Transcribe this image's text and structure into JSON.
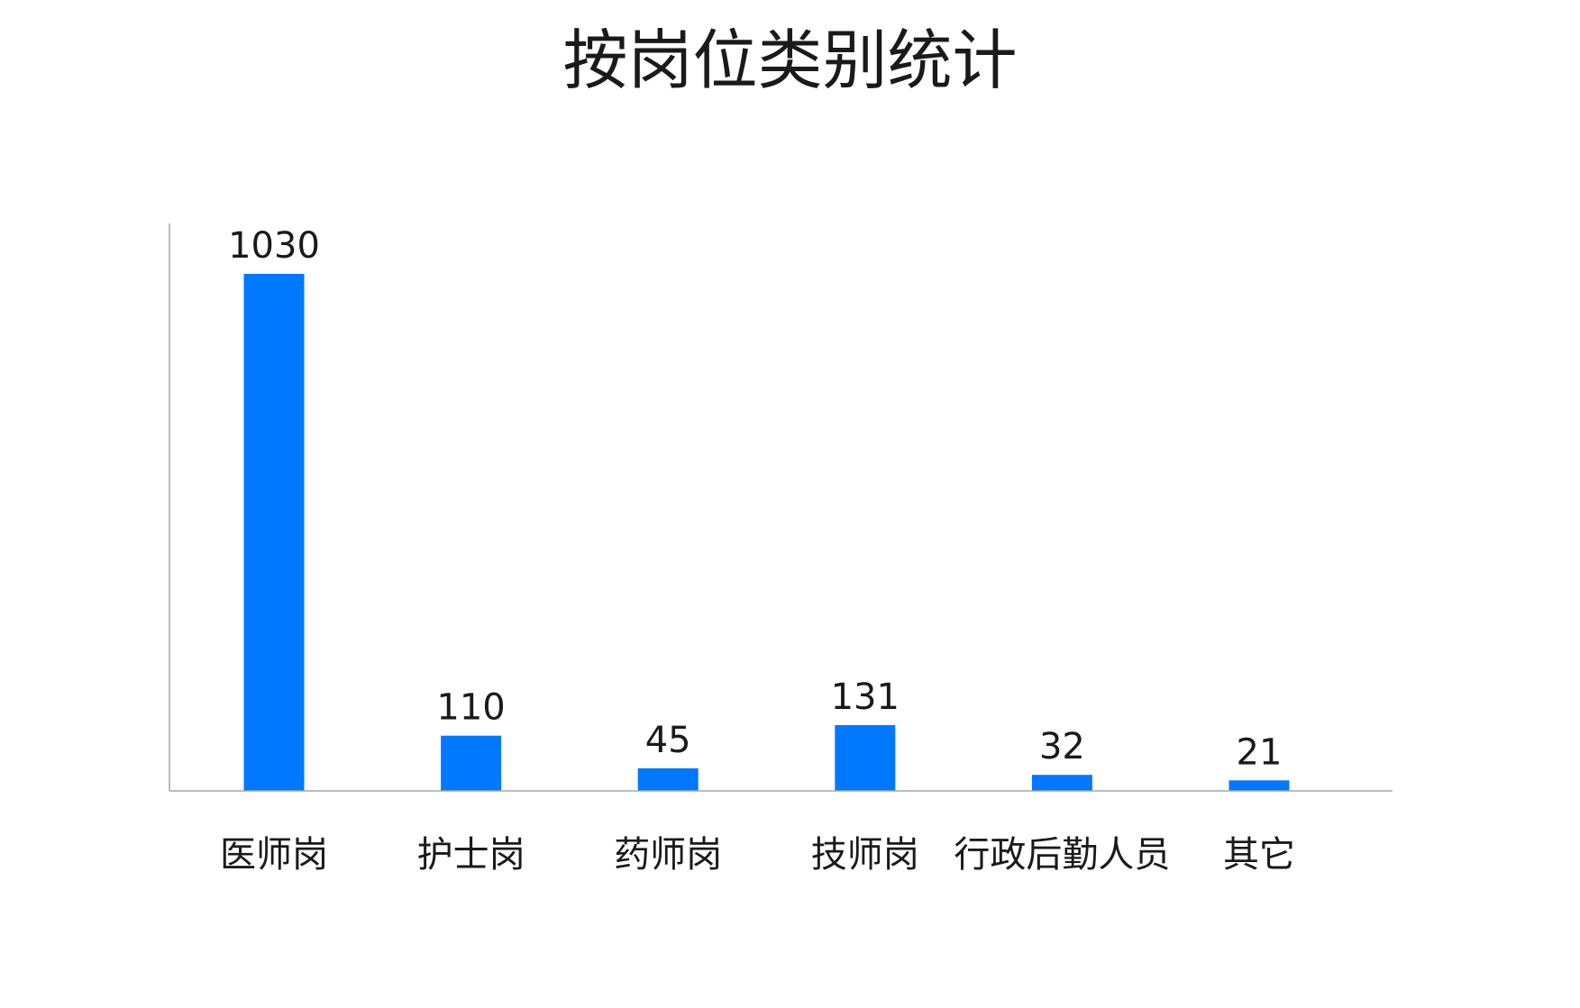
{
  "chart_data": {
    "type": "bar",
    "title": "按岗位类别统计",
    "categories": [
      "医师岗",
      "护士岗",
      "药师岗",
      "技师岗",
      "行政后勤人员",
      "其它"
    ],
    "values": [
      1030,
      110,
      45,
      131,
      32,
      21
    ],
    "xlabel": "",
    "ylabel": "",
    "ylim": [
      0,
      1100
    ],
    "grid": false,
    "legend": "none",
    "bar_color": "#0078FF",
    "axis_color": "#A6A6A6"
  }
}
